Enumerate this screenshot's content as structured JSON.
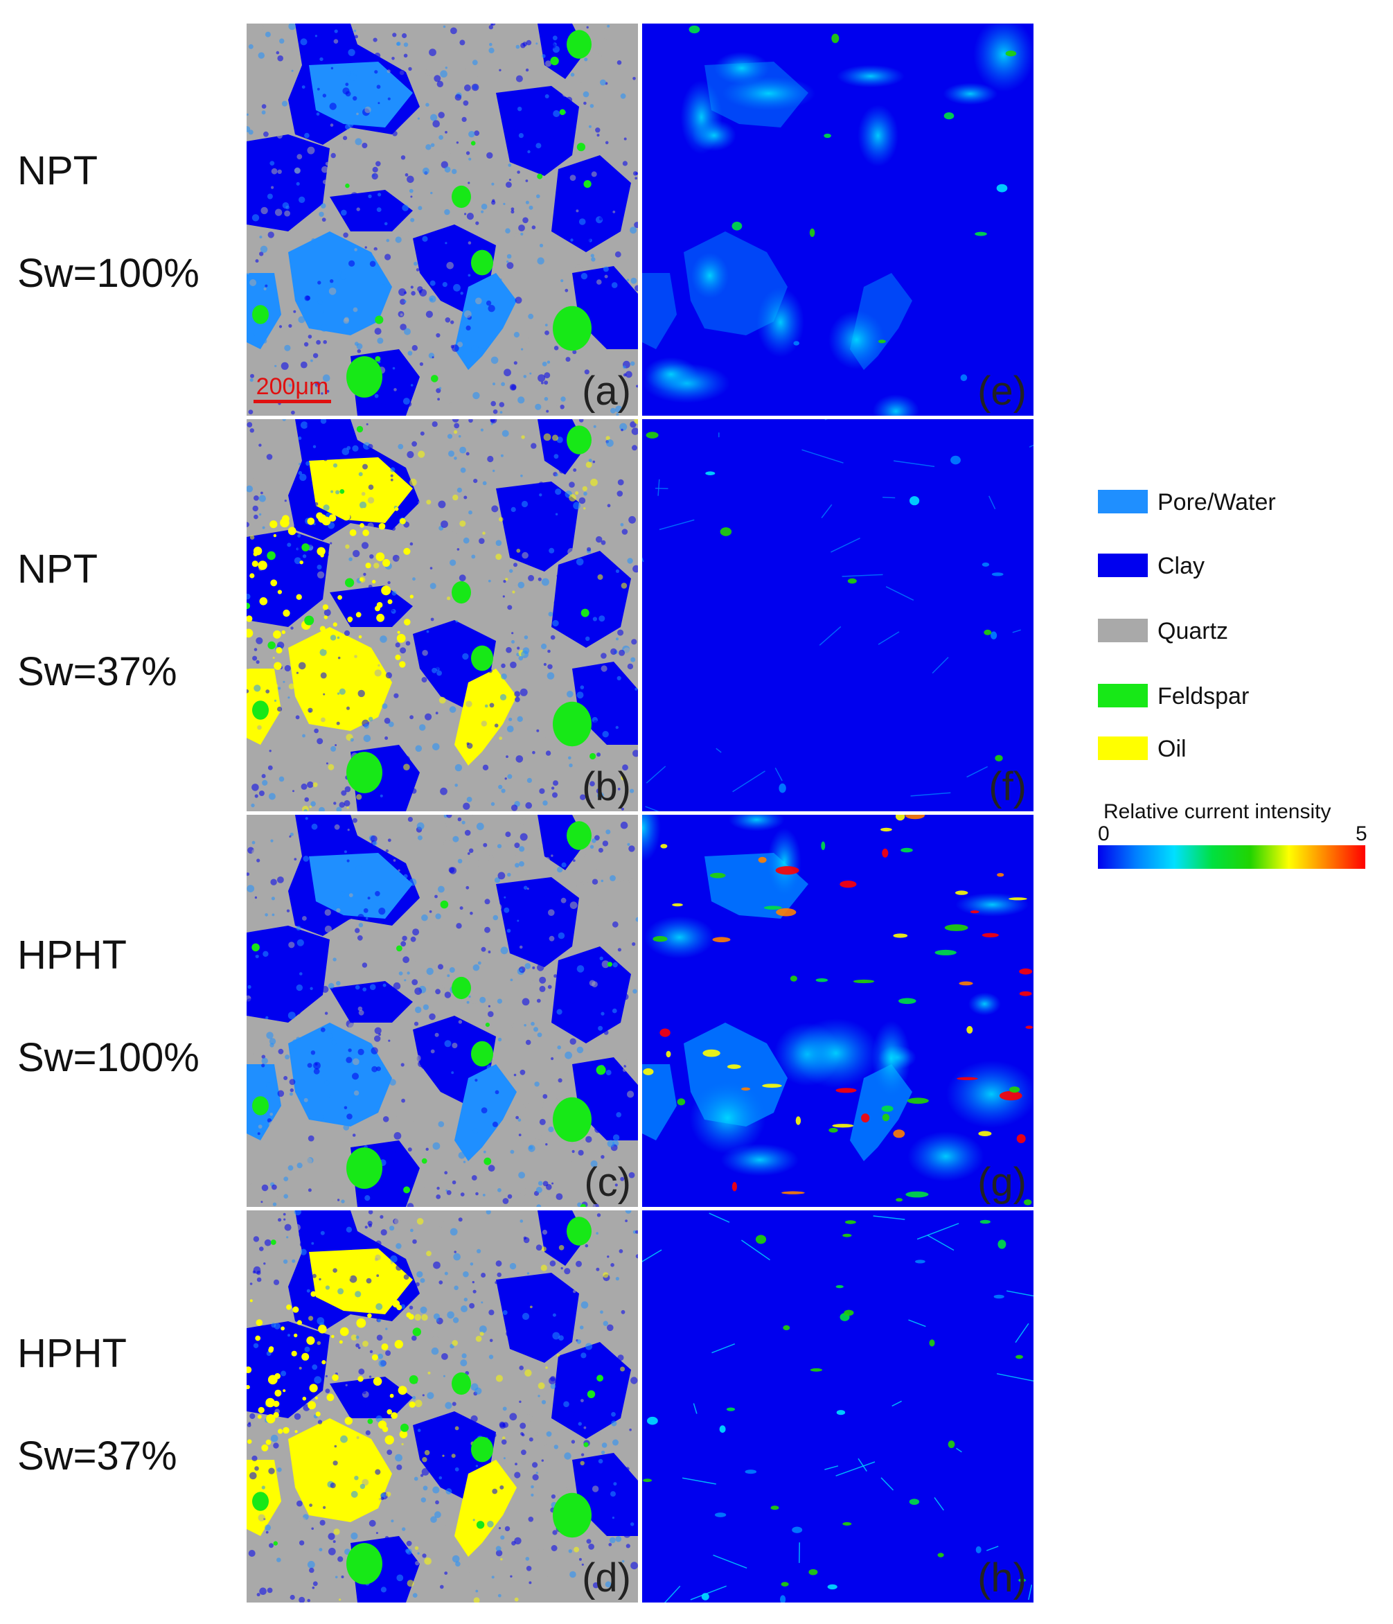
{
  "rows": [
    {
      "condition": "NPT",
      "saturation": "Sw=100%"
    },
    {
      "condition": "NPT",
      "saturation": "Sw=37%"
    },
    {
      "condition": "HPHT",
      "saturation": "Sw=100%"
    },
    {
      "condition": "HPHT",
      "saturation": "Sw=37%"
    }
  ],
  "panels": {
    "mineral": [
      "(a)",
      "(b)",
      "(c)",
      "(d)"
    ],
    "current": [
      "(e)",
      "(f)",
      "(g)",
      "(h)"
    ]
  },
  "scale_bar": {
    "label": "200μm"
  },
  "legend": {
    "items": [
      {
        "label": "Pore/Water",
        "color": "#1f8fff"
      },
      {
        "label": "Clay",
        "color": "#0000ef"
      },
      {
        "label": "Quartz",
        "color": "#a9a9a9"
      },
      {
        "label": "Feldspar",
        "color": "#17e817"
      },
      {
        "label": "Oil",
        "color": "#ffff00"
      }
    ]
  },
  "colorbar": {
    "title": "Relative current intensity",
    "min": "0",
    "max": "5",
    "colors": [
      "#0000ee",
      "#0080ff",
      "#00e0ff",
      "#00e040",
      "#22d400",
      "#ffff00",
      "#ff8000",
      "#ff0000"
    ]
  }
}
